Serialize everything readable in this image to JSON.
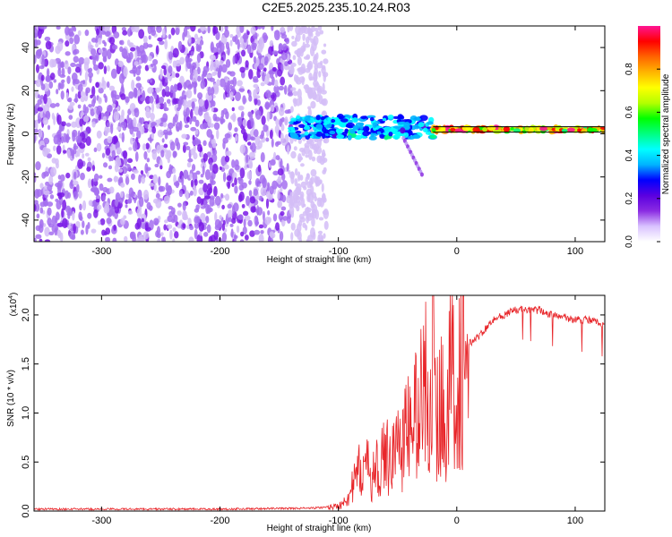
{
  "figure_title": "C2E5.2025.235.10.24.R03",
  "chart_data": [
    {
      "type": "heatmap",
      "title": "",
      "xlabel": "Height of straight line (km)",
      "ylabel": "Frequency (Hz)",
      "xlim": [
        -357,
        125
      ],
      "ylim": [
        -50,
        50
      ],
      "x_ticks": [
        -300,
        -200,
        -100,
        0,
        100
      ],
      "y_ticks": [
        -40,
        -20,
        0,
        20,
        40
      ],
      "colorbar": {
        "label": "Normalized spectral amplitude",
        "range": [
          0,
          1
        ],
        "ticks": [
          "0.0",
          "0.2",
          "0.4",
          "0.6",
          "0.8"
        ],
        "colormap": [
          "#ffffff",
          "#d9c2ff",
          "#8a2be2",
          "#5a00e0",
          "#0000ff",
          "#00b4ff",
          "#00ffff",
          "#00ff80",
          "#00ff00",
          "#b4ff00",
          "#ffff00",
          "#ffb400",
          "#ff6400",
          "#ff0000",
          "#ff1493"
        ]
      },
      "regions": [
        {
          "name": "noise",
          "x_range": [
            -357,
            -140
          ],
          "freq_range": [
            -50,
            50
          ],
          "amplitude": 0.25
        },
        {
          "name": "noise_fade",
          "x_range": [
            -140,
            -110
          ],
          "freq_range": [
            -50,
            50
          ],
          "amplitude": 0.08
        },
        {
          "name": "carrier_onset",
          "x_range": [
            -140,
            -20
          ],
          "freq_center": 3,
          "freq_spread": 5,
          "amplitude": 0.45
        },
        {
          "name": "carrier_line",
          "x_range": [
            -20,
            125
          ],
          "freq_center": 2,
          "freq_spread": 1,
          "amplitude": 0.95
        }
      ],
      "reference_line_y": 2
    },
    {
      "type": "line",
      "title": "",
      "xlabel": "Height of straight line (km)",
      "ylabel": "SNR (10 * v/v)",
      "y_exponent_label": "(x10",
      "y_exponent_value": "4",
      "xlim": [
        -357,
        125
      ],
      "ylim": [
        0,
        2.2
      ],
      "x_ticks": [
        -300,
        -200,
        -100,
        0,
        100
      ],
      "y_ticks": [
        "0.0",
        "0.5",
        "1.0",
        "1.5",
        "2.0"
      ],
      "series": [
        {
          "color": "#e8262a",
          "x": [
            -357,
            -300,
            -200,
            -120,
            -100,
            -90,
            -80,
            -70,
            -60,
            -50,
            -40,
            -30,
            -25,
            -20,
            -15,
            -10,
            -5,
            0,
            10,
            20,
            30,
            40,
            50,
            60,
            70,
            80,
            90,
            100,
            110,
            120,
            125
          ],
          "y": [
            0.02,
            0.02,
            0.02,
            0.03,
            0.05,
            0.2,
            0.5,
            0.4,
            0.6,
            0.7,
            0.9,
            1.2,
            1.5,
            1.0,
            1.1,
            1.2,
            1.4,
            1.5,
            1.7,
            1.8,
            1.95,
            2.0,
            2.05,
            2.05,
            2.05,
            2.0,
            1.98,
            1.95,
            1.95,
            1.92,
            1.9
          ]
        }
      ]
    }
  ]
}
